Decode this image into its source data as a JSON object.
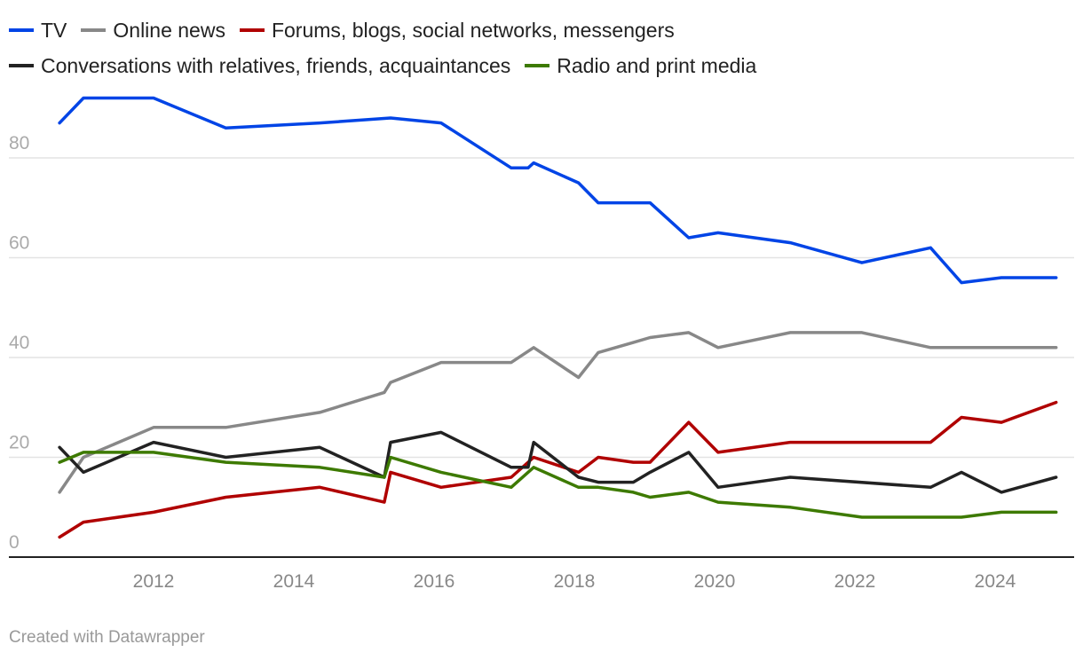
{
  "chart_data": {
    "type": "line",
    "title": "",
    "xlabel": "",
    "ylabel": "",
    "ylim": [
      0,
      95
    ],
    "xlim": [
      2010.6,
      2025
    ],
    "yticks": [
      "0",
      "20",
      "40",
      "60",
      "80"
    ],
    "xticks": [
      "2012",
      "2014",
      "2016",
      "2018",
      "2020",
      "2022",
      "2024"
    ],
    "grid": true,
    "legend_position": "top",
    "series": [
      {
        "name": "TV",
        "color": "#0044e6",
        "points": [
          [
            2010.66,
            87
          ],
          [
            2011.0,
            92
          ],
          [
            2012.0,
            92
          ],
          [
            2013.03,
            86
          ],
          [
            2014.37,
            87
          ],
          [
            2015.38,
            88
          ],
          [
            2016.1,
            87
          ],
          [
            2017.1,
            78
          ],
          [
            2017.34,
            78
          ],
          [
            2017.42,
            79
          ],
          [
            2018.06,
            75
          ],
          [
            2018.34,
            71
          ],
          [
            2019.08,
            71
          ],
          [
            2019.63,
            64
          ],
          [
            2020.05,
            65
          ],
          [
            2021.08,
            63
          ],
          [
            2022.1,
            59
          ],
          [
            2023.08,
            62
          ],
          [
            2023.52,
            55
          ],
          [
            2024.09,
            56
          ],
          [
            2024.87,
            56
          ]
        ]
      },
      {
        "name": "Online news",
        "color": "#888888",
        "points": [
          [
            2010.66,
            13
          ],
          [
            2011.0,
            20
          ],
          [
            2012.0,
            26
          ],
          [
            2013.03,
            26
          ],
          [
            2014.37,
            29
          ],
          [
            2015.29,
            33
          ],
          [
            2015.38,
            35
          ],
          [
            2016.1,
            39
          ],
          [
            2017.1,
            39
          ],
          [
            2017.42,
            42
          ],
          [
            2018.06,
            36
          ],
          [
            2018.34,
            41
          ],
          [
            2018.84,
            43
          ],
          [
            2019.08,
            44
          ],
          [
            2019.63,
            45
          ],
          [
            2020.05,
            42
          ],
          [
            2021.08,
            45
          ],
          [
            2022.1,
            45
          ],
          [
            2023.08,
            42
          ],
          [
            2023.52,
            42
          ],
          [
            2024.09,
            42
          ],
          [
            2024.87,
            42
          ]
        ]
      },
      {
        "name": "Forums, blogs, social networks, messengers",
        "color": "#b00000",
        "points": [
          [
            2010.66,
            4
          ],
          [
            2011.0,
            7
          ],
          [
            2012.0,
            9
          ],
          [
            2013.03,
            12
          ],
          [
            2014.37,
            14
          ],
          [
            2015.29,
            11
          ],
          [
            2015.38,
            17
          ],
          [
            2016.1,
            14
          ],
          [
            2017.1,
            16
          ],
          [
            2017.42,
            20
          ],
          [
            2018.06,
            17
          ],
          [
            2018.34,
            20
          ],
          [
            2018.84,
            19
          ],
          [
            2019.08,
            19
          ],
          [
            2019.63,
            27
          ],
          [
            2020.05,
            21
          ],
          [
            2021.08,
            23
          ],
          [
            2022.1,
            23
          ],
          [
            2023.08,
            23
          ],
          [
            2023.52,
            28
          ],
          [
            2024.09,
            27
          ],
          [
            2024.87,
            31
          ]
        ]
      },
      {
        "name": "Conversations with relatives, friends, acquaintances",
        "color": "#222222",
        "points": [
          [
            2010.66,
            22
          ],
          [
            2011.0,
            17
          ],
          [
            2012.0,
            23
          ],
          [
            2013.03,
            20
          ],
          [
            2014.37,
            22
          ],
          [
            2015.29,
            16
          ],
          [
            2015.38,
            23
          ],
          [
            2016.1,
            25
          ],
          [
            2017.1,
            18
          ],
          [
            2017.34,
            18
          ],
          [
            2017.42,
            23
          ],
          [
            2018.06,
            16
          ],
          [
            2018.34,
            15
          ],
          [
            2018.84,
            15
          ],
          [
            2019.08,
            17
          ],
          [
            2019.63,
            21
          ],
          [
            2020.05,
            14
          ],
          [
            2021.08,
            16
          ],
          [
            2023.08,
            14
          ],
          [
            2023.52,
            17
          ],
          [
            2024.09,
            13
          ],
          [
            2024.87,
            16
          ]
        ]
      },
      {
        "name": "Radio and print media",
        "color": "#3d7a00",
        "points": [
          [
            2010.66,
            19
          ],
          [
            2011.0,
            21
          ],
          [
            2012.0,
            21
          ],
          [
            2013.03,
            19
          ],
          [
            2014.37,
            18
          ],
          [
            2015.29,
            16
          ],
          [
            2015.38,
            20
          ],
          [
            2016.1,
            17
          ],
          [
            2017.1,
            14
          ],
          [
            2017.42,
            18
          ],
          [
            2018.06,
            14
          ],
          [
            2018.34,
            14
          ],
          [
            2018.84,
            13
          ],
          [
            2019.08,
            12
          ],
          [
            2019.63,
            13
          ],
          [
            2020.05,
            11
          ],
          [
            2021.08,
            10
          ],
          [
            2022.1,
            8
          ],
          [
            2023.08,
            8
          ],
          [
            2023.52,
            8
          ],
          [
            2024.09,
            9
          ],
          [
            2024.87,
            9
          ]
        ]
      }
    ]
  },
  "footer": "Created with Datawrapper"
}
